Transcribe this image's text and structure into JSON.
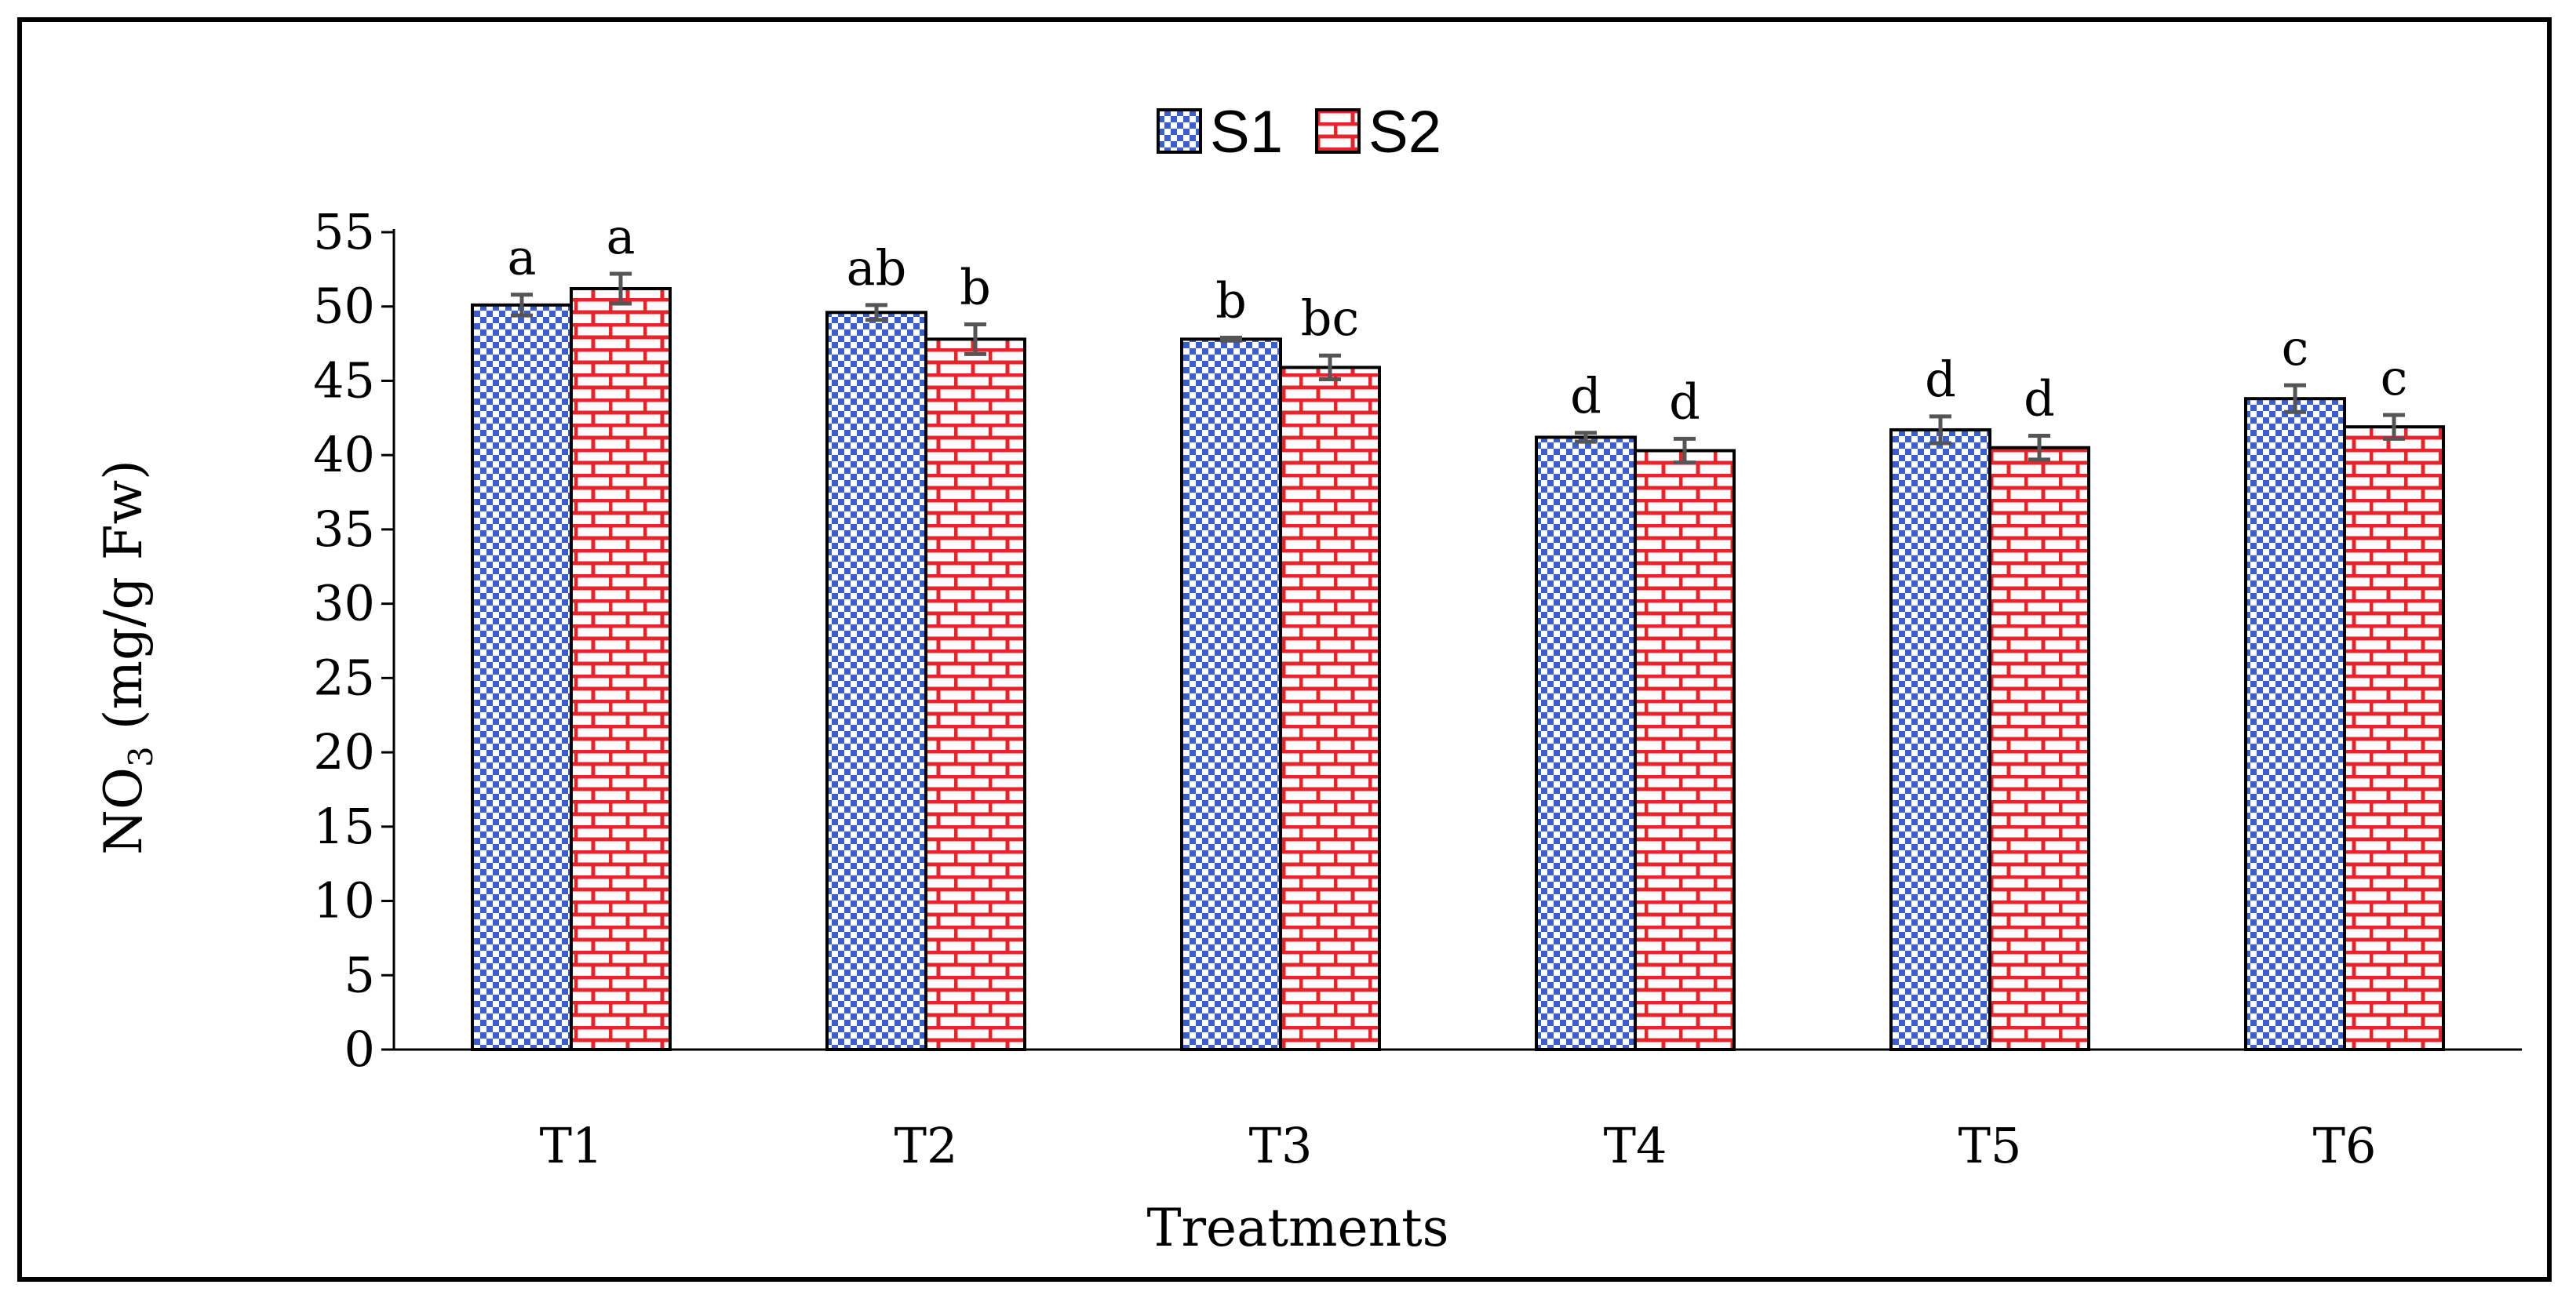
{
  "chart_data": {
    "type": "bar",
    "title": "",
    "xlabel": "Treatments",
    "ylabel": "NO3 (mg/g Fw)",
    "ylabel_parts": {
      "main": "NO",
      "subscript": "3",
      "rest": " (mg/g Fw)"
    },
    "ylim": [
      0,
      55
    ],
    "yticks": [
      0,
      5,
      10,
      15,
      20,
      25,
      30,
      35,
      40,
      45,
      50,
      55
    ],
    "categories": [
      "T1",
      "T2",
      "T3",
      "T4",
      "T5",
      "T6"
    ],
    "legend_position": "top-center",
    "series": [
      {
        "name": "S1",
        "pattern": "checkerboard",
        "color": "#3a5fcd",
        "values": [
          50.1,
          49.6,
          47.8,
          41.2,
          41.7,
          43.8
        ],
        "errors": [
          0.7,
          0.5,
          0.1,
          0.3,
          0.9,
          0.9
        ],
        "significance": [
          "a",
          "ab",
          "b",
          "d",
          "d",
          "c"
        ]
      },
      {
        "name": "S2",
        "pattern": "bricks",
        "color": "#e8232a",
        "values": [
          51.2,
          47.8,
          45.9,
          40.3,
          40.5,
          41.9
        ],
        "errors": [
          1.0,
          1.0,
          0.8,
          0.8,
          0.8,
          0.8
        ],
        "significance": [
          "a",
          "b",
          "bc",
          "d",
          "d",
          "c"
        ]
      }
    ]
  }
}
